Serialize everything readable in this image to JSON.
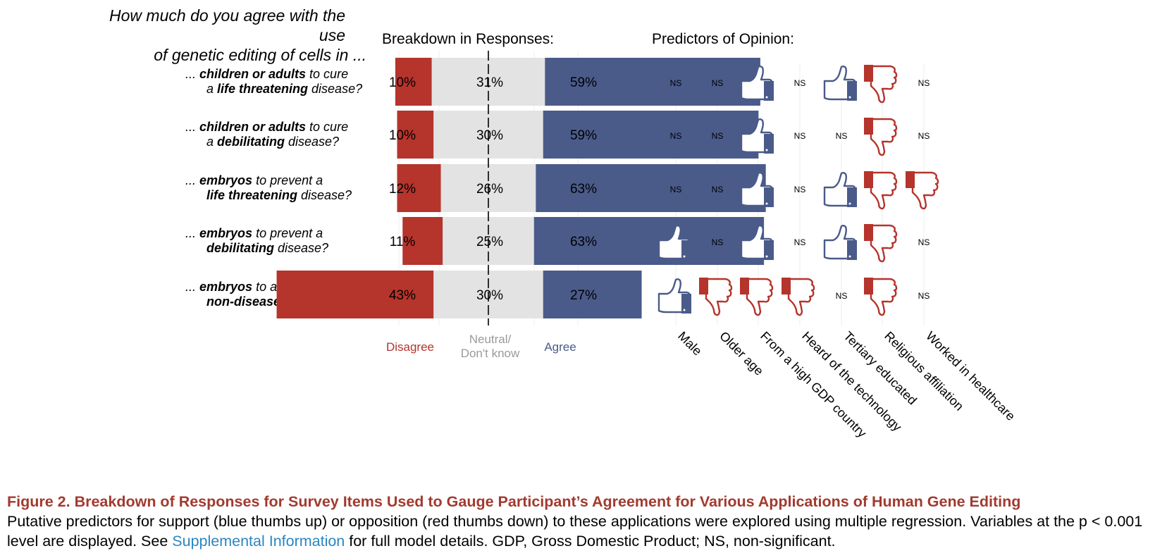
{
  "question_header": {
    "line1": "How much do you agree with the use",
    "line2": "of genetic editing of cells in ..."
  },
  "panel_titles": {
    "breakdown": "Breakdown in Responses:",
    "predictors": "Predictors of Opinion:"
  },
  "items": [
    {
      "line1": [
        {
          "t": "... ",
          "b": false
        },
        {
          "t": "children or adults",
          "b": true
        },
        {
          "t": " to cure",
          "b": false
        }
      ],
      "line2": [
        {
          "t": "a ",
          "b": false
        },
        {
          "t": "life threatening",
          "b": true
        },
        {
          "t": " disease?",
          "b": false
        }
      ]
    },
    {
      "line1": [
        {
          "t": "... ",
          "b": false
        },
        {
          "t": "children or adults",
          "b": true
        },
        {
          "t": " to cure",
          "b": false
        }
      ],
      "line2": [
        {
          "t": "a ",
          "b": false
        },
        {
          "t": "debilitating",
          "b": true
        },
        {
          "t": " disease?",
          "b": false
        }
      ]
    },
    {
      "line1": [
        {
          "t": "... ",
          "b": false
        },
        {
          "t": "embryos",
          "b": true
        },
        {
          "t": " to prevent a",
          "b": false
        }
      ],
      "line2": [
        {
          "t": "life threatening",
          "b": true
        },
        {
          "t": " disease?",
          "b": false
        }
      ]
    },
    {
      "line1": [
        {
          "t": "... ",
          "b": false
        },
        {
          "t": "embryos",
          "b": true
        },
        {
          "t": " to prevent a",
          "b": false
        }
      ],
      "line2": [
        {
          "t": "debilitating",
          "b": true
        },
        {
          "t": " disease?",
          "b": false
        }
      ]
    },
    {
      "line1": [
        {
          "t": "... ",
          "b": false
        },
        {
          "t": "embryos",
          "b": true
        },
        {
          "t": " to alter any",
          "b": false
        }
      ],
      "line2": [
        {
          "t": "non-disease characteristic",
          "b": true
        },
        {
          "t": "?",
          "b": false
        }
      ]
    }
  ],
  "categories": {
    "disagree": "Disagree",
    "neutral_line1": "Neutral/",
    "neutral_line2": "Don't know",
    "agree": "Agree"
  },
  "colors": {
    "disagree": "#b5342c",
    "neutral": "#e3e3e3",
    "agree": "#4a5b8a",
    "neutral_label": "#9a9a9a",
    "thumb_up": "#4a5b8a",
    "thumb_down": "#b5342c",
    "caption_title": "#a23a2f",
    "link": "#2a86c2"
  },
  "chart_data": [
    {
      "type": "bar",
      "stacked": true,
      "diverging": true,
      "series": [
        {
          "name": "Disagree",
          "values": [
            10,
            10,
            12,
            11,
            43
          ],
          "labels": [
            "10%",
            "10%",
            "12%",
            "11%",
            "43%"
          ]
        },
        {
          "name": "Neutral/Don't know",
          "values": [
            31,
            30,
            26,
            25,
            30
          ],
          "labels": [
            "31%",
            "30%",
            "26%",
            "25%",
            "30%"
          ]
        },
        {
          "name": "Agree",
          "values": [
            59,
            59,
            63,
            63,
            27
          ],
          "labels": [
            "59%",
            "59%",
            "63%",
            "63%",
            "27%"
          ]
        }
      ]
    },
    {
      "type": "table",
      "columns": [
        "Male",
        "Older age",
        "From a high GDP country",
        "Heard of the technology",
        "Tertiary educated",
        "Religious affiliation",
        "Worked in healthcare"
      ],
      "ns_label": "NS",
      "rows": [
        [
          "NS",
          "NS",
          "up",
          "NS",
          "up",
          "down",
          "NS"
        ],
        [
          "NS",
          "NS",
          "up",
          "NS",
          "NS",
          "down",
          "NS"
        ],
        [
          "NS",
          "NS",
          "up",
          "NS",
          "up",
          "down",
          "down"
        ],
        [
          "up",
          "NS",
          "up",
          "NS",
          "up",
          "down",
          "NS"
        ],
        [
          "up",
          "down",
          "down",
          "down",
          "NS",
          "down",
          "NS"
        ]
      ]
    }
  ],
  "caption": {
    "title": "Figure 2.  Breakdown of Responses for Survey Items Used to Gauge Participant’s Agreement for Various Applications of Human Gene Editing",
    "text_before_link": "Putative predictors for support (blue thumbs up) or opposition (red thumbs down) to these applications were explored using multiple regression. Variables at the p < 0.001 level are displayed. See ",
    "link": "Supplemental Information",
    "text_after_link": " for full model details. GDP, Gross Domestic Product; NS, non-significant."
  }
}
